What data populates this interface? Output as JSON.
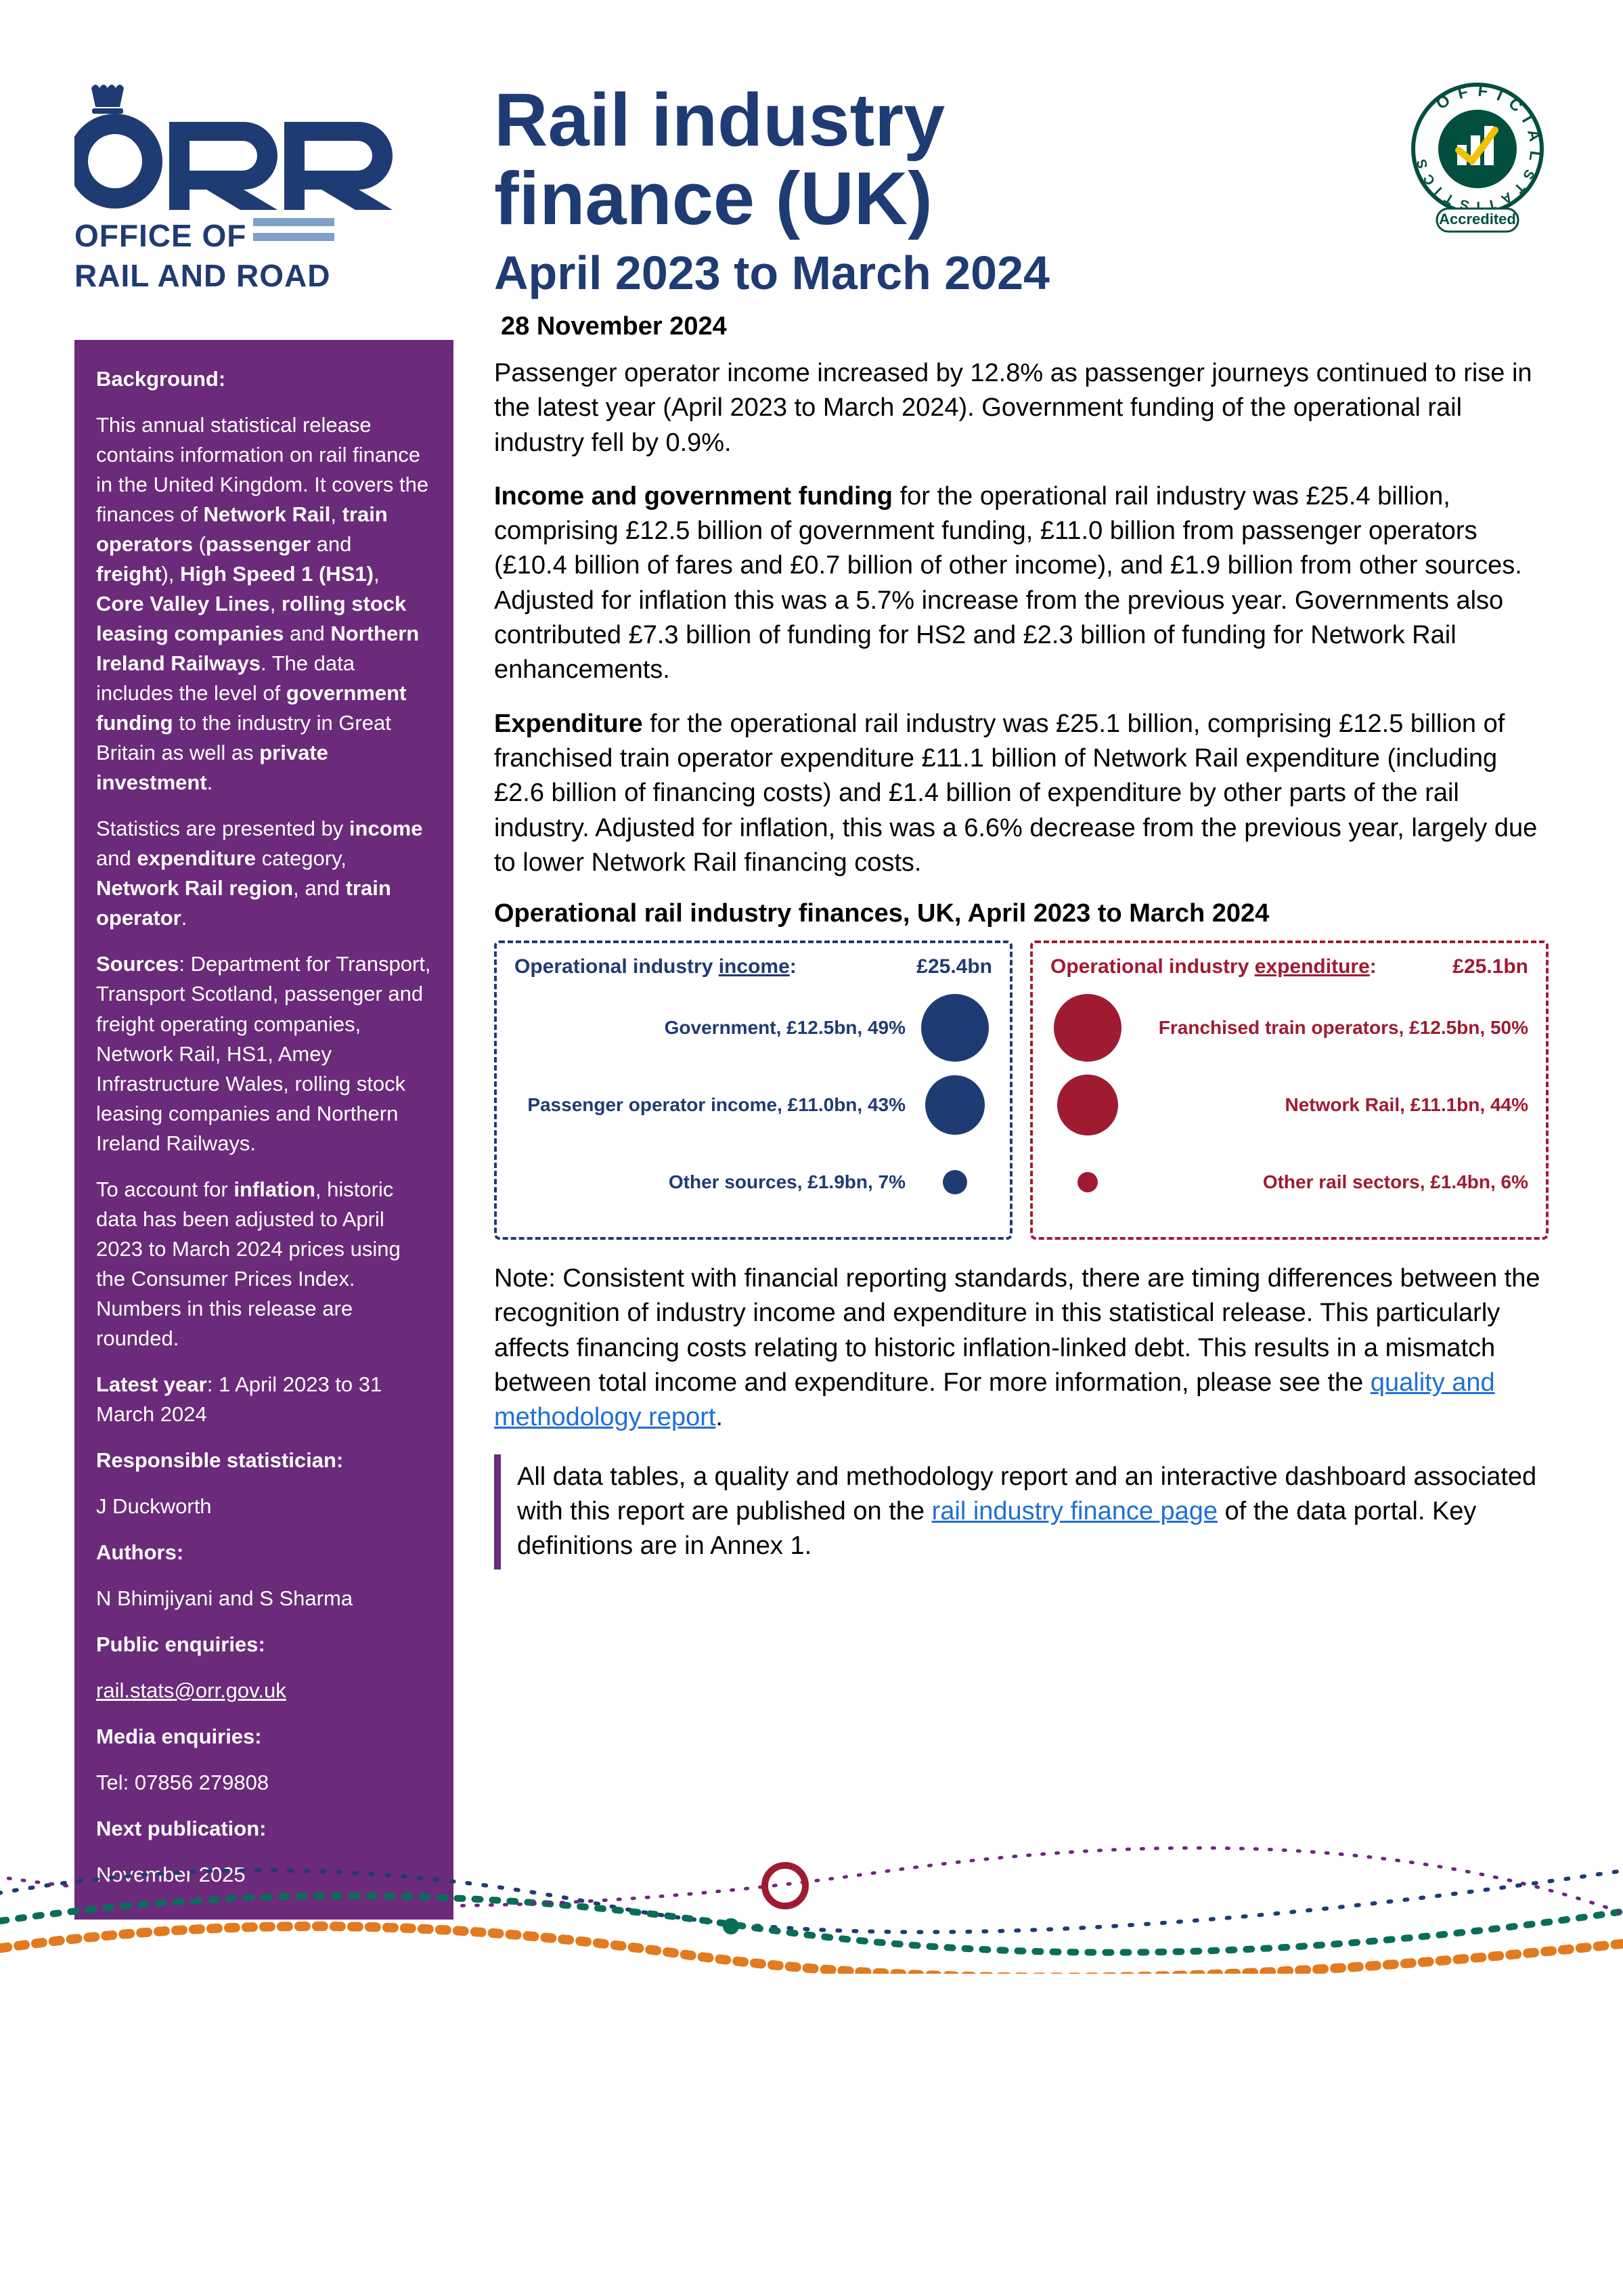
{
  "logo": {
    "org1": "OFFICE OF",
    "org2": "RAIL AND ROAD",
    "brand_color": "#1f3b73",
    "bar_color": "#7fa0c9"
  },
  "badge": {
    "outer_text": "OFFICIAL STATISTICS",
    "inner_text": "Accredited",
    "ring_color": "#024f3f",
    "tick_color": "#f2c100"
  },
  "title": {
    "line1": "Rail industry",
    "line2": "finance (UK)",
    "subtitle": "April 2023 to March 2024",
    "date": "28 November 2024"
  },
  "sidebar": {
    "background_heading": "Background:",
    "p1_a": "This annual statistical release contains information on rail finance in the United Kingdom. It covers the finances of ",
    "p1_b": "Network Rail",
    "p1_c": ", ",
    "p1_d": "train operators",
    "p1_e": " (",
    "p1_f": "passenger",
    "p1_g": " and ",
    "p1_h": "freight",
    "p1_i": "), ",
    "p1_j": "High Speed 1 (HS1)",
    "p1_k": ", ",
    "p1_l": "Core Valley Lines",
    "p1_m": ", ",
    "p1_n": "rolling stock leasing companies",
    "p1_o": " and ",
    "p1_p": "Northern Ireland Railways",
    "p1_q": ". The data includes the level of ",
    "p1_r": "government funding",
    "p1_s": " to the industry in Great Britain as well as ",
    "p1_t": "private investment",
    "p1_u": ".",
    "p2_a": "Statistics are presented by ",
    "p2_b": "income",
    "p2_c": " and ",
    "p2_d": "expenditure",
    "p2_e": " category, ",
    "p2_f": "Network Rail region",
    "p2_g": ", and ",
    "p2_h": "train operator",
    "p2_i": ".",
    "p3_a": "Sources",
    "p3_b": ": Department for Transport, Transport Scotland, passenger and freight operating companies, Network Rail, HS1, Amey Infrastructure Wales, rolling stock leasing companies and Northern Ireland Railways.",
    "p4_a": "To account for ",
    "p4_b": "inflation",
    "p4_c": ", historic data has been adjusted to April 2023 to March 2024 prices using the Consumer Prices Index. Numbers in this release are rounded.",
    "latest_label": "Latest year",
    "latest_value": ": 1 April 2023 to 31 March 2024",
    "resp_label": "Responsible statistician:",
    "resp_value": "J Duckworth",
    "authors_label": "Authors:",
    "authors_value": "N Bhimjiyani and S Sharma",
    "pub_enq_label": "Public enquiries:",
    "pub_enq_value": "rail.stats@orr.gov.uk",
    "media_label": "Media enquiries:",
    "media_value": "Tel: 07856 279808",
    "next_label": "Next publication:",
    "next_value": "November 2025"
  },
  "body": {
    "p1": "Passenger operator income increased by 12.8% as passenger journeys continued to rise in the latest year (April 2023 to March 2024). Government funding of the operational rail industry fell by 0.9%.",
    "p2_strong": "Income and government funding",
    "p2_rest": " for the operational rail industry was £25.4 billion, comprising £12.5 billion of government funding, £11.0 billion from passenger operators (£10.4 billion of fares and £0.7 billion of other income), and £1.9 billion from other sources. Adjusted for inflation this was a 5.7% increase from the previous year. Governments also contributed £7.3 billion of funding for HS2 and £2.3 billion of funding for Network Rail enhancements.",
    "p3_strong": "Expenditure",
    "p3_rest": " for the operational rail industry was £25.1 billion, comprising £12.5 billion of franchised train operator expenditure £11.1 billion of Network Rail expenditure (including £2.6 billion of financing costs) and £1.4 billion of expenditure by other parts of the rail industry. Adjusted for inflation, this was a 6.6% decrease from the previous year, largely due to lower Network Rail financing costs.",
    "chart_title": "Operational rail industry finances, UK, April 2023 to March 2024",
    "note_a": "Note: Consistent with financial reporting standards, there are timing differences between the recognition of industry income and expenditure in this statistical release. This particularly affects financing costs relating to historic inflation-linked debt. This results in a mismatch between total income and expenditure. For more information, please see the ",
    "note_link": "quality and methodology report",
    "note_b": ".",
    "callout_a": "All data tables, a quality and methodology report and an interactive dashboard associated with this report are published on the ",
    "callout_link": "rail industry finance page",
    "callout_b": " of the data portal. Key definitions are in Annex 1."
  },
  "chart": {
    "income": {
      "title_a": "Operational industry ",
      "title_b": "income",
      "title_c": ":",
      "total": "£25.4bn",
      "color": "#1f3b73",
      "border_color": "#1f3b73",
      "items": [
        {
          "label": "Government, £12.5bn, 49%",
          "diameter": 100
        },
        {
          "label": "Passenger operator income, £11.0bn, 43%",
          "diameter": 88
        },
        {
          "label": "Other sources, £1.9bn, 7%",
          "diameter": 36
        }
      ]
    },
    "expenditure": {
      "title_a": "Operational industry ",
      "title_b": "expenditure",
      "title_c": ":",
      "total": "£25.1bn",
      "color": "#9f1b32",
      "border_color": "#9f1b32",
      "items": [
        {
          "label": "Franchised train operators, £12.5bn, 50%",
          "diameter": 100
        },
        {
          "label": "Network Rail, £11.1bn, 44%",
          "diameter": 90
        },
        {
          "label": "Other rail sectors, £1.4bn, 6%",
          "diameter": 30
        }
      ]
    }
  },
  "deco": {
    "colors": [
      "#1f3b73",
      "#0a6d5a",
      "#e27a1f",
      "#9f1b32",
      "#6b2a7a"
    ]
  }
}
